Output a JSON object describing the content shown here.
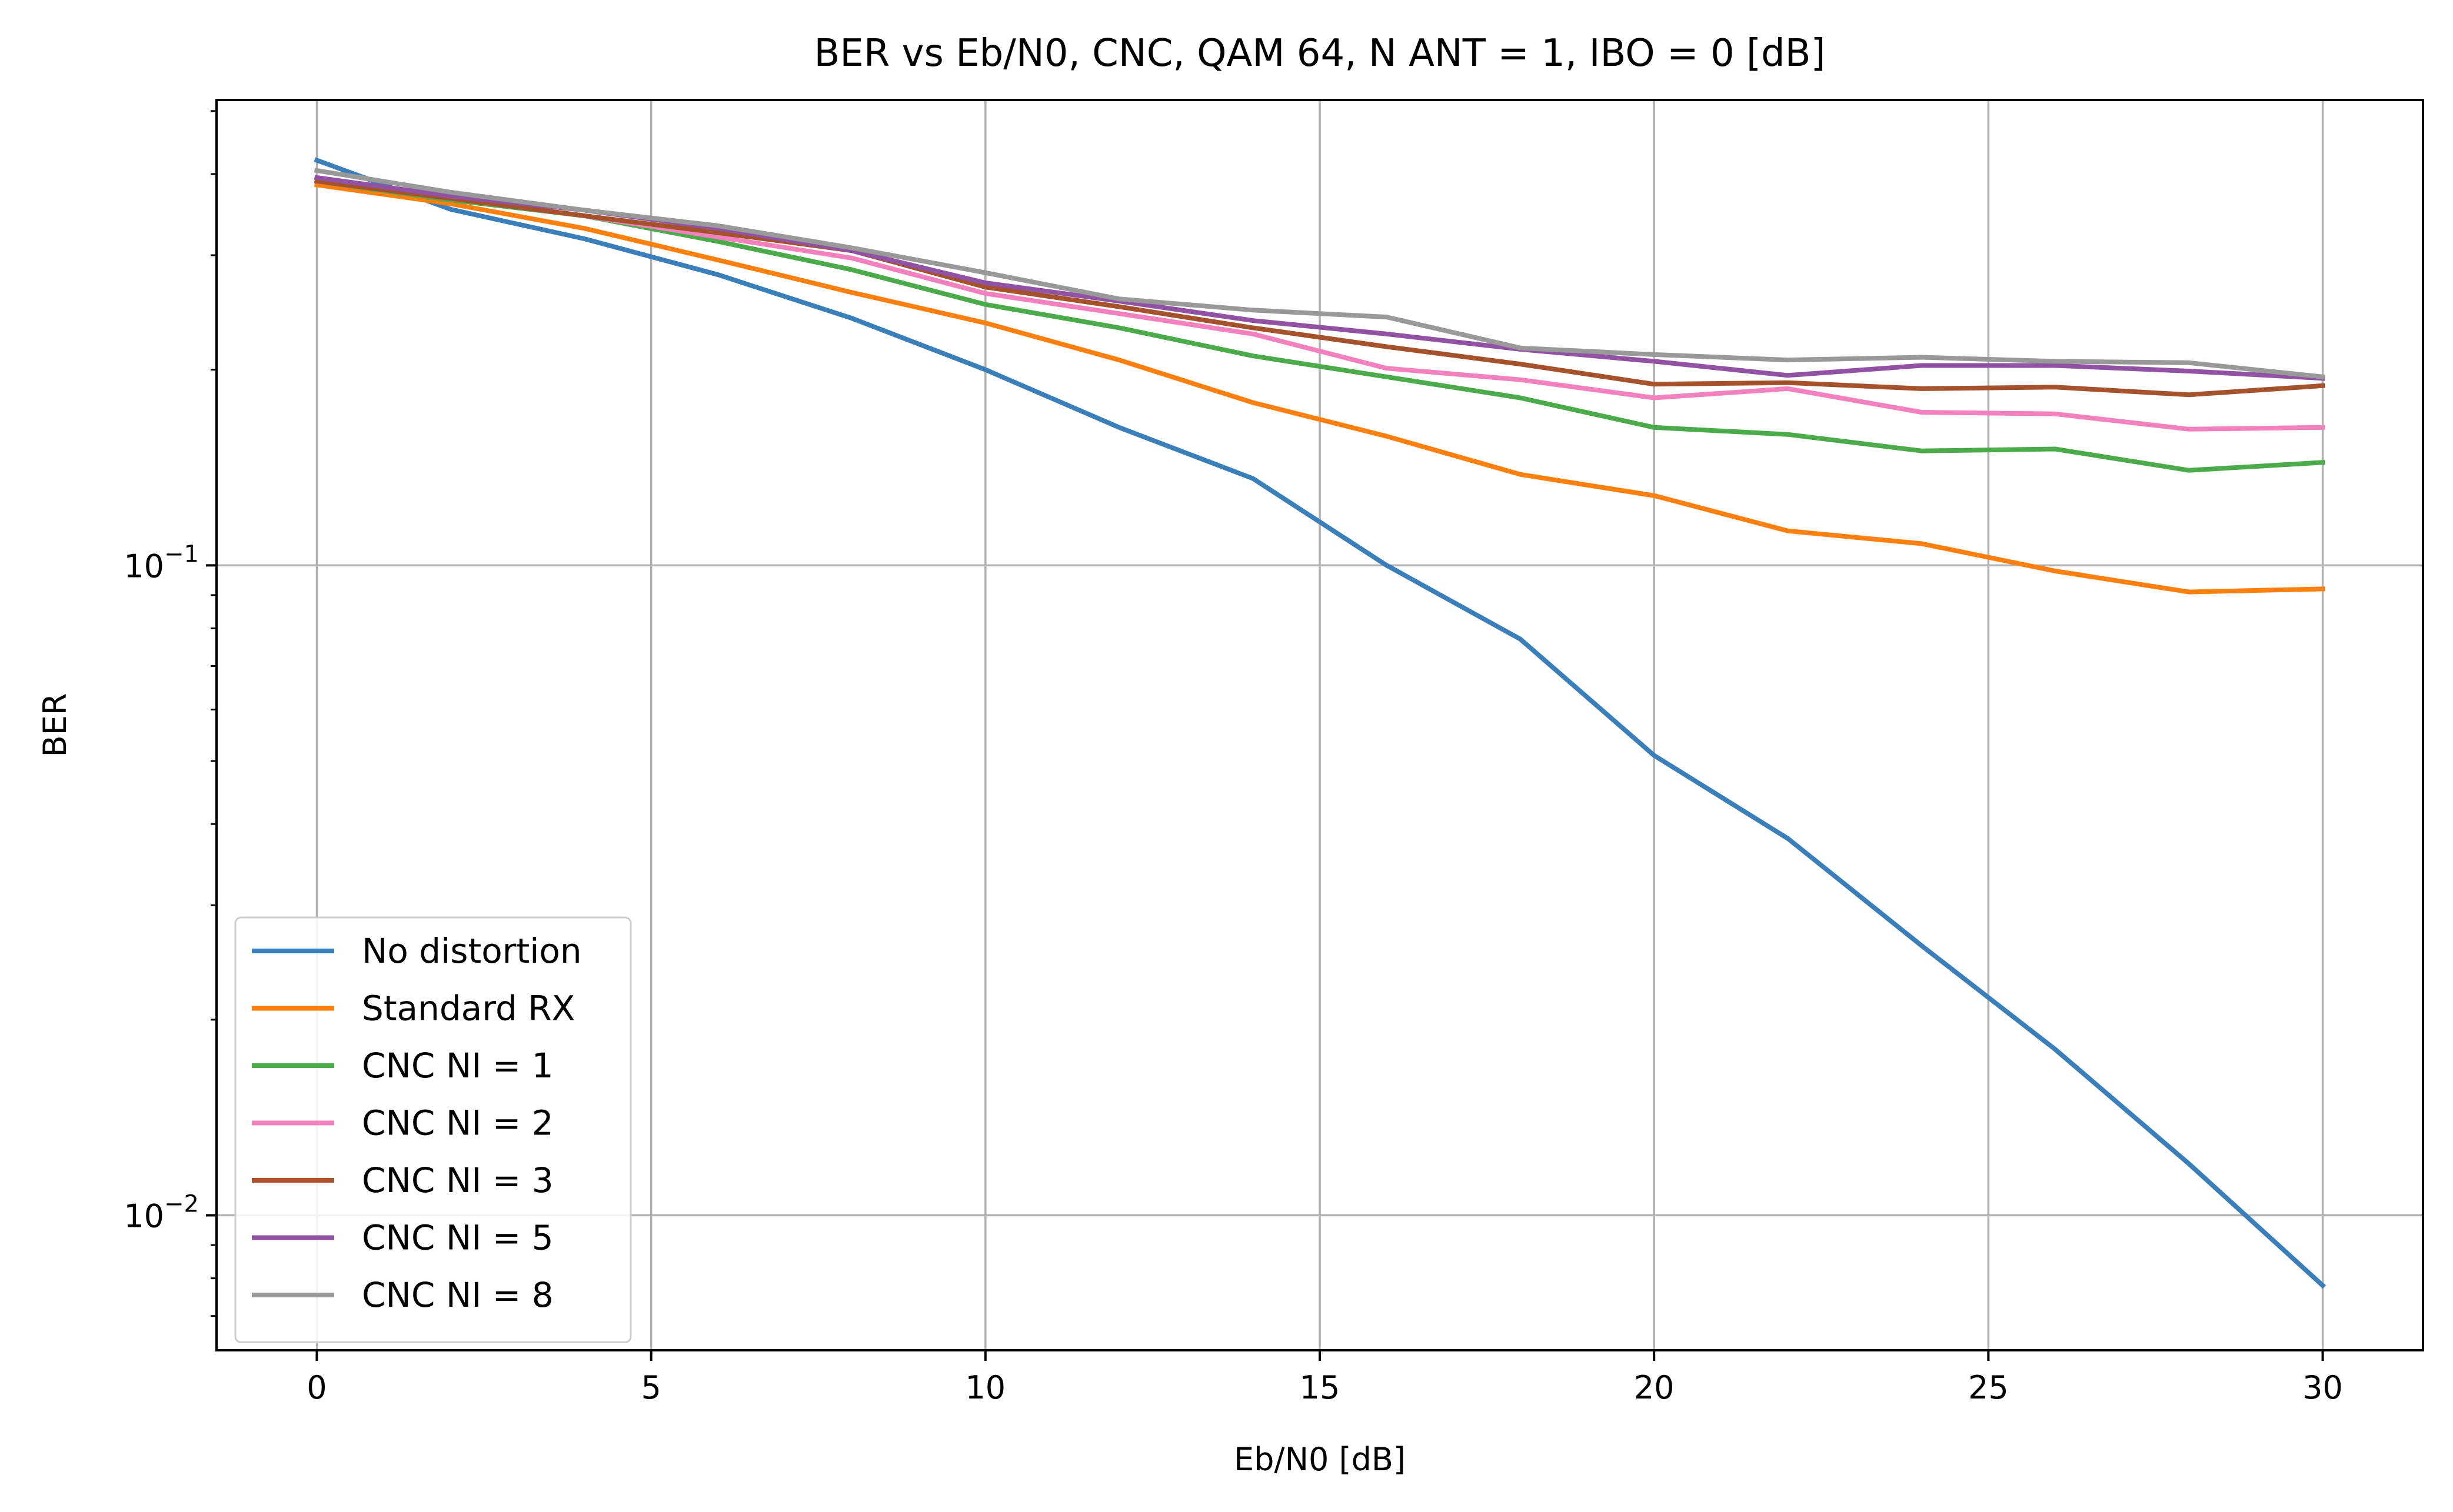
{
  "chart_data": {
    "type": "line",
    "title": "BER vs Eb/N0, CNC, QAM 64, N ANT = 1, IBO = 0 [dB]",
    "xlabel": "Eb/N0 [dB]",
    "ylabel": "BER",
    "xscale": "linear",
    "yscale": "log",
    "xlim": [
      -1.5,
      31.5
    ],
    "ylim": [
      0.0062,
      0.52
    ],
    "xticks": [
      0,
      5,
      10,
      15,
      20,
      25,
      30
    ],
    "xtick_labels": [
      "0",
      "5",
      "10",
      "15",
      "20",
      "25",
      "30"
    ],
    "yticks": [
      0.1,
      0.01
    ],
    "ytick_labels": [
      {
        "base": "10",
        "exp": "−1"
      },
      {
        "base": "10",
        "exp": "−2"
      }
    ],
    "grid": true,
    "legend_position": "lower-left",
    "x": [
      0,
      2,
      4,
      6,
      8,
      10,
      12,
      14,
      16,
      18,
      20,
      22,
      24,
      26,
      28,
      30
    ],
    "series": [
      {
        "name": "No distortion",
        "color": "#3a7fba",
        "values": [
          0.42,
          0.353,
          0.318,
          0.28,
          0.24,
          0.2,
          0.163,
          0.136,
          0.1,
          0.077,
          0.051,
          0.038,
          0.026,
          0.018,
          0.012,
          0.0078
        ]
      },
      {
        "name": "Standard RX",
        "color": "#fd7f0e",
        "values": [
          0.385,
          0.36,
          0.33,
          0.295,
          0.263,
          0.236,
          0.207,
          0.178,
          0.158,
          0.138,
          0.128,
          0.113,
          0.108,
          0.098,
          0.091,
          0.092
        ]
      },
      {
        "name": "CNC NI = 1",
        "color": "#4bab4a",
        "values": [
          0.39,
          0.365,
          0.345,
          0.315,
          0.285,
          0.252,
          0.232,
          0.21,
          0.195,
          0.181,
          0.163,
          0.159,
          0.15,
          0.151,
          0.14,
          0.144
        ]
      },
      {
        "name": "CNC NI = 2",
        "color": "#f281be",
        "values": [
          0.39,
          0.367,
          0.345,
          0.32,
          0.297,
          0.262,
          0.244,
          0.227,
          0.201,
          0.193,
          0.181,
          0.187,
          0.172,
          0.171,
          0.162,
          0.163
        ]
      },
      {
        "name": "CNC NI = 3",
        "color": "#a5522c",
        "values": [
          0.39,
          0.367,
          0.345,
          0.325,
          0.305,
          0.268,
          0.25,
          0.232,
          0.217,
          0.204,
          0.19,
          0.191,
          0.187,
          0.188,
          0.183,
          0.189
        ]
      },
      {
        "name": "CNC NI = 5",
        "color": "#9252a3",
        "values": [
          0.395,
          0.37,
          0.352,
          0.33,
          0.305,
          0.272,
          0.255,
          0.238,
          0.227,
          0.215,
          0.206,
          0.196,
          0.203,
          0.203,
          0.199,
          0.194
        ]
      },
      {
        "name": "CNC NI = 8",
        "color": "#999999",
        "values": [
          0.405,
          0.375,
          0.352,
          0.333,
          0.308,
          0.282,
          0.257,
          0.247,
          0.241,
          0.216,
          0.211,
          0.207,
          0.209,
          0.206,
          0.205,
          0.195
        ]
      }
    ]
  }
}
